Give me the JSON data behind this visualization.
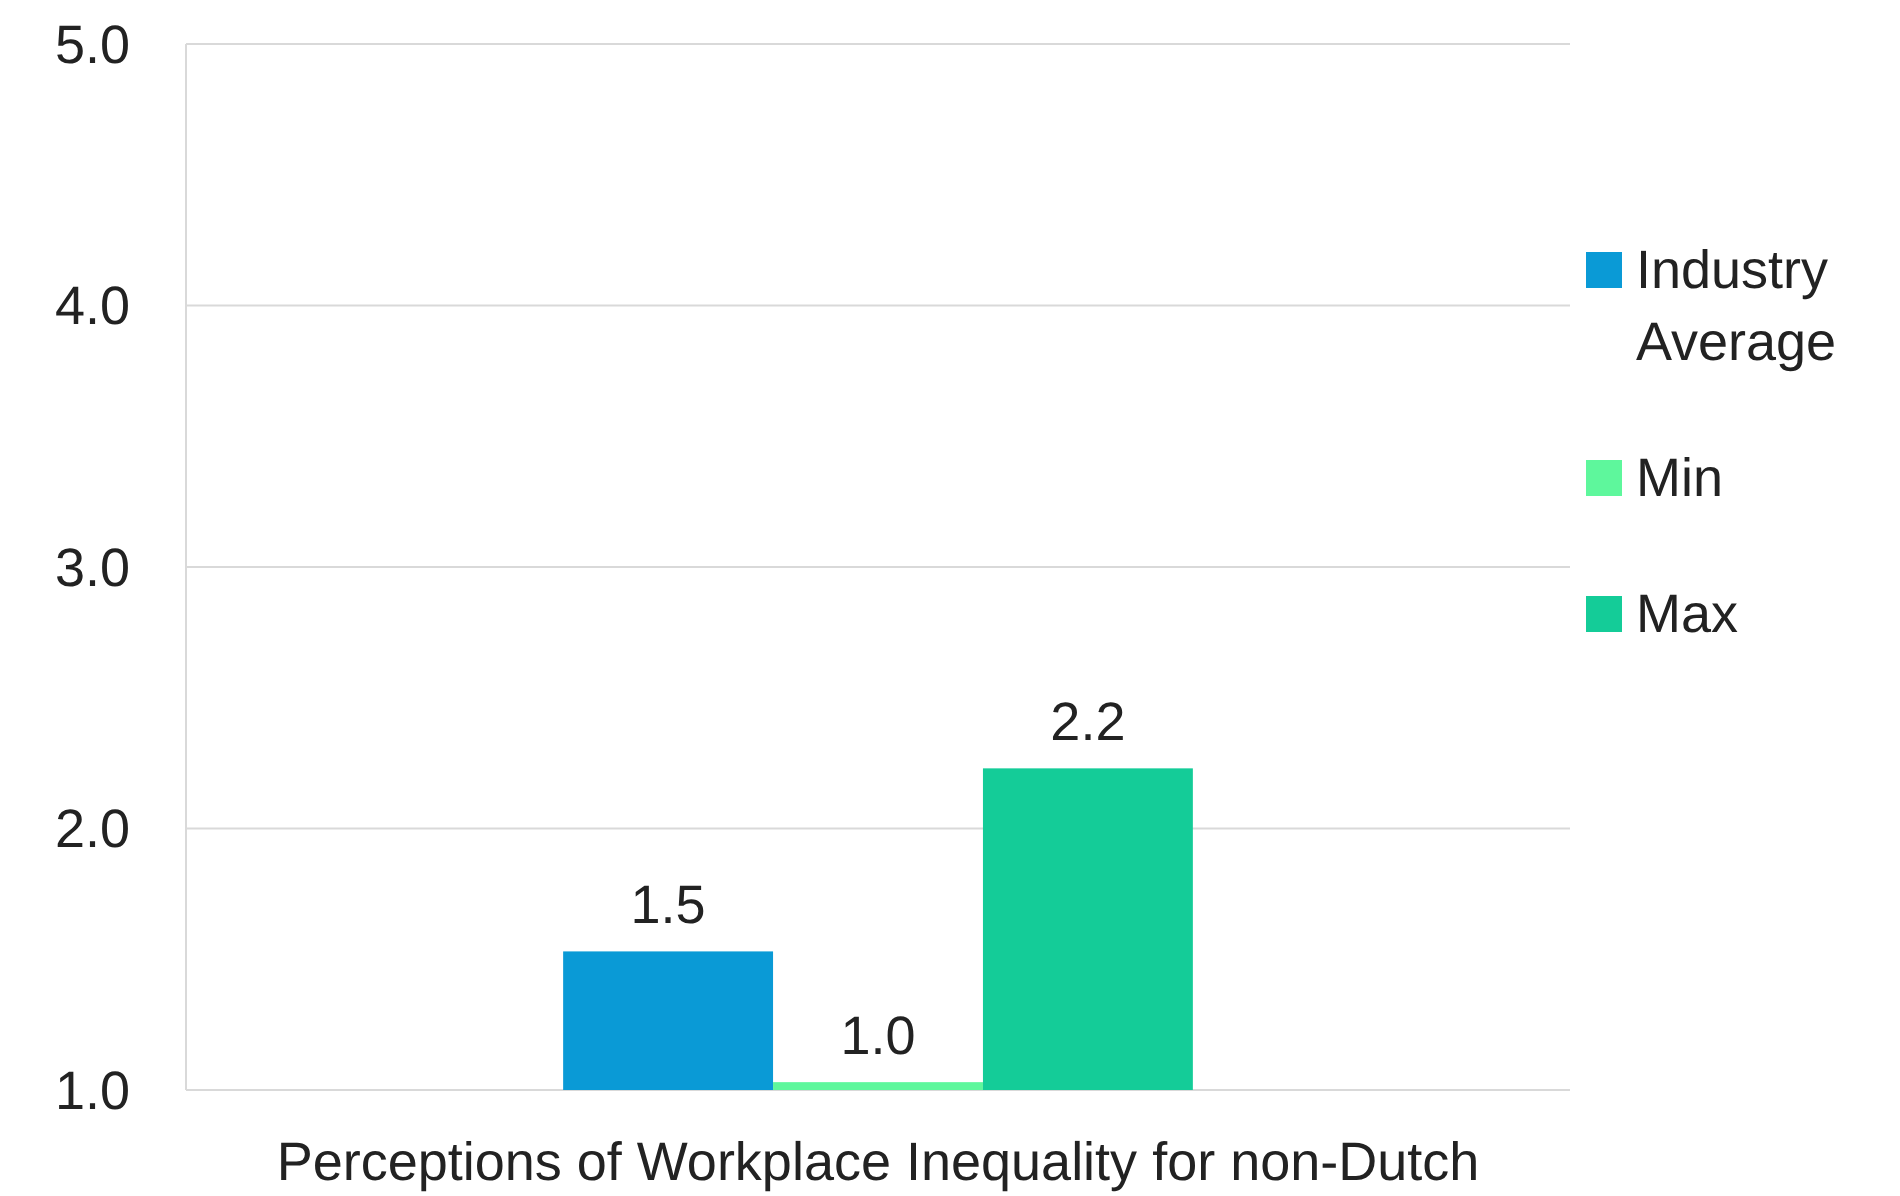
{
  "chart_data": {
    "type": "bar",
    "categories": [
      "Perceptions of Workplace Inequality for non-Dutch"
    ],
    "series": [
      {
        "name": "Industry Average",
        "color": "#0a9ad6",
        "values": [
          1.53
        ],
        "value_labels": [
          "1.5"
        ]
      },
      {
        "name": "Min",
        "color": "#5ef79c",
        "values": [
          1.03
        ],
        "value_labels": [
          "1.0"
        ]
      },
      {
        "name": "Max",
        "color": "#14cc98",
        "values": [
          2.23
        ],
        "value_labels": [
          "2.2"
        ]
      }
    ],
    "ylim": [
      1,
      5
    ],
    "yticks": [
      {
        "value": 1,
        "label": "1.0"
      },
      {
        "value": 2,
        "label": "2.0"
      },
      {
        "value": 3,
        "label": "3.0"
      },
      {
        "value": 4,
        "label": "4.0"
      },
      {
        "value": 5,
        "label": "5.0"
      }
    ],
    "grid": "y",
    "legend": "right"
  }
}
